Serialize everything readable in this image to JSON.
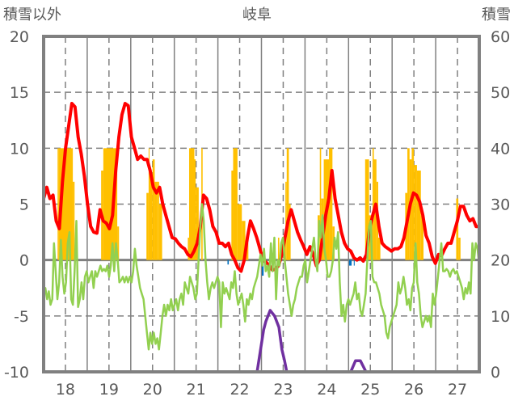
{
  "chart_data": {
    "type": "line",
    "title": "岐阜",
    "ylabel_left": "積雪以外",
    "ylabel_right": "積雪",
    "xlim": [
      17.5,
      27.5
    ],
    "ylim_left": [
      -10,
      20
    ],
    "ylim_right": [
      0,
      60
    ],
    "x_ticks": [
      18,
      19,
      20,
      21,
      22,
      23,
      24,
      25,
      26,
      27
    ],
    "x_tick_labels": [
      "18",
      "19",
      "20",
      "21",
      "22",
      "23",
      "24",
      "25",
      "26",
      "27"
    ],
    "y_left_ticks": [
      20,
      15,
      10,
      5,
      0,
      -5,
      -10
    ],
    "y_left_tick_labels": [
      "20",
      "15",
      "10",
      "5",
      "0",
      "-5",
      "-10"
    ],
    "y_right_ticks": [
      60,
      50,
      40,
      30,
      20,
      10,
      0
    ],
    "y_right_tick_labels": [
      "60",
      "50",
      "40",
      "30",
      "20",
      "10",
      "0"
    ],
    "grid": true,
    "series": [
      {
        "name": "red",
        "color": "#ff0000",
        "axis": "left",
        "kind": "line",
        "x_start": 17.5,
        "x_end": 27.5,
        "values": [
          5.5,
          6.5,
          5.5,
          5.8,
          3.5,
          2.8,
          7,
          10,
          12,
          14,
          13.7,
          11,
          9.5,
          7.5,
          5,
          3,
          2.5,
          2.4,
          4.5,
          3.5,
          3.3,
          2.8,
          4,
          8,
          11,
          13,
          14,
          13.8,
          11,
          10,
          9,
          9.3,
          9,
          9,
          8,
          6.5,
          6,
          6.5,
          5,
          4,
          3,
          2,
          1.9,
          1.5,
          1.2,
          1,
          0.5,
          0.3,
          0.8,
          1.5,
          3,
          5.8,
          5.5,
          4.5,
          3,
          2.5,
          1.5,
          1.5,
          1.2,
          1.5,
          0.5,
          0,
          -0.7,
          -1,
          0,
          2,
          3.5,
          2.8,
          2,
          1,
          0,
          -0.2,
          -0.5,
          -0.9,
          -0.8,
          -0.5,
          0.5,
          2,
          3.5,
          4.5,
          3.5,
          2.5,
          1.8,
          1.2,
          0.5,
          1.2,
          0.5,
          -0.5,
          0,
          2,
          4,
          5.5,
          8,
          5.5,
          4,
          2.5,
          1.5,
          1,
          0.8,
          0.2,
          0,
          0.2,
          -0.1,
          0.5,
          2.8,
          4,
          5,
          3,
          1.5,
          1.2,
          1,
          0.8,
          1,
          1,
          1.2,
          2,
          3.5,
          5,
          6,
          5.8,
          5.2,
          4,
          2.2,
          1.5,
          0.3,
          -0.3,
          0.5,
          0.4,
          1,
          1.5,
          1.5,
          2.5,
          3.5,
          4.8,
          4.8,
          4,
          3.5,
          3.7,
          3,
          3
        ]
      },
      {
        "name": "green",
        "color": "#92d050",
        "axis": "left",
        "kind": "line",
        "x_start": 17.5,
        "x_end": 27.5,
        "values": [
          -3,
          -2.5,
          -3.5,
          -2.8,
          -4,
          -3.5,
          1.5,
          -1,
          -3.5,
          -2,
          1.8,
          -1.5,
          -3,
          -2,
          1.5,
          2.5,
          -3.5,
          -4,
          -1,
          3.5,
          -4.2,
          -3.5,
          -2,
          -3.5,
          -1.5,
          -1,
          -2,
          -1.5,
          -1,
          -2.5,
          -1,
          -1.5,
          -1,
          -0.5,
          -1,
          -0.8,
          -1,
          -0.5,
          -1.5,
          -0.5,
          1.5,
          -1,
          1.5,
          0,
          -2,
          -1.8,
          -1.5,
          -2,
          -1.5,
          -2,
          -1.5,
          -2,
          -1,
          1,
          -0.5,
          -1.5,
          -2.5,
          -3,
          -3.5,
          -5,
          -6.5,
          -8,
          -6.5,
          -7.5,
          -6.5,
          -7.5,
          -7,
          -8,
          -6.5,
          -5,
          -4,
          -5,
          -4,
          -4.5,
          -3.5,
          -4.5,
          -4,
          -3.5,
          -4.5,
          -3.5,
          -3,
          -4,
          -2,
          -2.5,
          -3,
          -1.5,
          -2,
          -2.5,
          -3.5,
          -3,
          0,
          3,
          5,
          3.5,
          0,
          -2,
          -3.5,
          -2.5,
          -2,
          -2.5,
          -2,
          -1.5,
          -2,
          -6,
          -2,
          -3,
          -2.5,
          -3,
          -3.5,
          -2,
          -2.5,
          -1,
          -3,
          -4,
          -3.5,
          -3,
          -4,
          -5.5,
          -3.5,
          -4,
          -3,
          -3.5,
          -2.5,
          -2,
          -1.5,
          -0.5,
          0.5,
          -0.5,
          1,
          -1,
          -0.5,
          -1.5,
          1.5,
          -1,
          2,
          -3.5,
          0,
          -0.5,
          1.5,
          2,
          0,
          -1.5,
          -3,
          -4,
          -5,
          -4,
          -3.5,
          -2.5,
          -2,
          -1.5,
          -1.5,
          -0.5,
          0,
          -2,
          -1,
          0,
          1,
          2,
          0,
          -1,
          3.5,
          2,
          4,
          1,
          0,
          -1.5,
          -1.5,
          -1,
          0,
          2,
          1,
          2.5,
          -2,
          -5,
          -4,
          -5.5,
          -4,
          -3.5,
          -4,
          -3.5,
          -3,
          -2,
          -3.5,
          -3,
          -4.5,
          -5,
          -4,
          -3,
          0,
          3,
          3.5,
          -1.5,
          -2,
          -2,
          -2.5,
          -3,
          -4,
          -4.5,
          -5,
          -6.5,
          -7,
          -6,
          -5.5,
          -5,
          -4.5,
          -4,
          -2,
          -3,
          -2.5,
          -1.5,
          -2.5,
          -4,
          -3.5,
          -4.5,
          -2.5,
          -2,
          1.5,
          -2,
          -3,
          -5,
          -6,
          -5.5,
          -5,
          -5.5,
          -5,
          -6,
          -3,
          -4,
          -3,
          -1.5,
          0,
          1.5,
          -1,
          -1,
          -0.8,
          -1,
          -1.5,
          -1,
          -0.8,
          -1.2,
          -1,
          -1.5,
          -2,
          -2.5,
          -3.5,
          -2.5,
          -3,
          -2,
          -3,
          1.5,
          0,
          1.5,
          1,
          -0.5
        ]
      },
      {
        "name": "purple",
        "color": "#7030a0",
        "axis": "right",
        "kind": "line",
        "points": [
          [
            17.5,
            0
          ],
          [
            22.4,
            0
          ],
          [
            22.55,
            7.5
          ],
          [
            22.6,
            9
          ],
          [
            22.7,
            11
          ],
          [
            22.8,
            10
          ],
          [
            22.9,
            8
          ],
          [
            22.97,
            4
          ],
          [
            23.03,
            2
          ],
          [
            23.08,
            0
          ],
          [
            24.55,
            0
          ],
          [
            24.66,
            2
          ],
          [
            24.77,
            2
          ],
          [
            24.9,
            0
          ],
          [
            27.5,
            0
          ]
        ]
      },
      {
        "name": "orange",
        "color": "#ffc000",
        "axis": "left",
        "kind": "bar",
        "bars": [
          [
            17.82,
            17.85,
            10
          ],
          [
            17.85,
            18.17,
            10
          ],
          [
            18.17,
            18.21,
            7
          ],
          [
            18.82,
            18.87,
            8
          ],
          [
            18.87,
            19.19,
            10
          ],
          [
            19.19,
            19.23,
            3
          ],
          [
            19.86,
            19.91,
            6
          ],
          [
            19.91,
            19.93,
            10
          ],
          [
            19.93,
            20.0,
            7.5
          ],
          [
            20.0,
            20.05,
            9
          ],
          [
            20.05,
            20.1,
            7
          ],
          [
            20.1,
            20.15,
            7
          ],
          [
            20.15,
            20.22,
            5
          ],
          [
            20.81,
            20.84,
            2
          ],
          [
            20.84,
            20.96,
            10
          ],
          [
            20.96,
            20.99,
            9
          ],
          [
            20.99,
            21.06,
            6.5
          ],
          [
            21.12,
            21.15,
            10
          ],
          [
            21.81,
            21.85,
            8
          ],
          [
            21.85,
            21.95,
            10
          ],
          [
            21.95,
            22.05,
            5
          ],
          [
            22.05,
            22.13,
            3.5
          ],
          [
            22.13,
            22.2,
            1.5
          ],
          [
            22.88,
            22.91,
            2
          ],
          [
            23.0,
            23.05,
            2
          ],
          [
            23.05,
            23.08,
            7
          ],
          [
            23.08,
            23.13,
            10
          ],
          [
            23.13,
            23.17,
            5
          ],
          [
            23.79,
            23.84,
            4
          ],
          [
            23.84,
            23.87,
            10
          ],
          [
            23.87,
            23.93,
            5.5
          ],
          [
            23.93,
            24.05,
            9
          ],
          [
            24.05,
            24.13,
            10
          ],
          [
            24.13,
            24.18,
            3
          ],
          [
            24.88,
            24.97,
            9
          ],
          [
            24.97,
            25.05,
            4
          ],
          [
            25.05,
            25.08,
            10
          ],
          [
            25.08,
            25.14,
            9
          ],
          [
            25.14,
            25.18,
            7
          ],
          [
            25.18,
            25.23,
            2
          ],
          [
            25.8,
            25.85,
            6
          ],
          [
            25.85,
            25.9,
            10
          ],
          [
            25.9,
            25.95,
            9
          ],
          [
            25.95,
            26.0,
            10
          ],
          [
            26.0,
            26.07,
            8.5
          ],
          [
            26.07,
            26.16,
            8
          ],
          [
            26.16,
            26.22,
            4
          ],
          [
            26.97,
            27.02,
            5.5
          ],
          [
            27.02,
            27.07,
            2
          ]
        ]
      },
      {
        "name": "blue",
        "color": "#0070c0",
        "axis": "left",
        "kind": "bar",
        "bars": [
          [
            21.72,
            21.75,
            -0.4
          ],
          [
            22.51,
            22.55,
            -1.4
          ],
          [
            22.58,
            22.61,
            -0.5
          ],
          [
            24.51,
            24.57,
            -0.5
          ],
          [
            24.62,
            24.64,
            -0.5
          ]
        ]
      }
    ]
  }
}
